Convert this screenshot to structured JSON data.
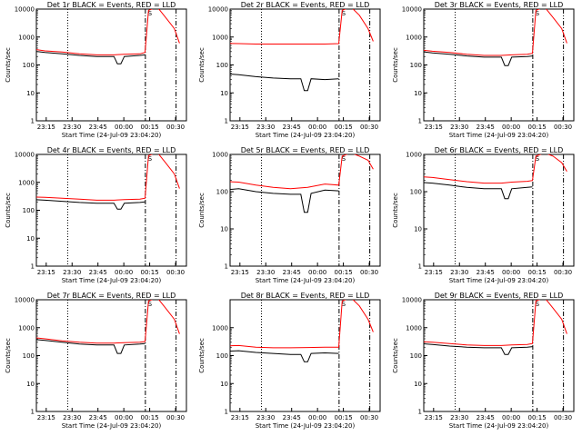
{
  "chart_data": [
    {
      "type": "line",
      "title": "Det 1r BLACK = Events, RED = LLD",
      "xlabel": "Start Time (24-Jul-09 23:04:20)",
      "ylabel": "Counts/sec",
      "yscale": "log",
      "ylim": [
        1,
        10000
      ],
      "yticks": [
        1,
        10,
        100,
        1000,
        10000
      ],
      "ytick_labels": [
        "1",
        "10",
        "100",
        "1000",
        "10000"
      ],
      "xlim_minutes": [
        23.3,
        40.5
      ],
      "xtick_labels": [
        "23:15",
        "23:30",
        "23:45",
        "00:00",
        "00:15",
        "00:30"
      ],
      "xtick_minutes": [
        10.7,
        25.7,
        40.7,
        55.7,
        70.7,
        85.7
      ],
      "grid": false,
      "markers_x_minutes": {
        "dotted": 23.2,
        "dash_dot": 68.2,
        "dash_dot_dot": 86.0
      },
      "saa_marker": "S",
      "series": [
        {
          "name": "Events",
          "color": "#000000",
          "x": [
            0,
            10,
            20,
            30,
            40,
            50,
            52,
            54,
            56,
            65,
            68
          ],
          "y": [
            330,
            280,
            250,
            220,
            200,
            200,
            110,
            110,
            200,
            220,
            230
          ]
        },
        {
          "name": "LLD",
          "color": "#ff0000",
          "x": [
            0,
            10,
            20,
            30,
            40,
            50,
            56,
            65,
            68,
            70,
            75,
            80,
            85,
            88
          ],
          "y": [
            390,
            320,
            290,
            250,
            230,
            230,
            240,
            250,
            280,
            9000,
            12000,
            5000,
            2000,
            600
          ]
        }
      ]
    },
    {
      "type": "line",
      "title": "Det 2r BLACK = Events, RED = LLD",
      "xlabel": "Start Time (24-Jul-09 23:04:20)",
      "ylabel": "Counts/sec",
      "yscale": "log",
      "ylim": [
        1,
        10000
      ],
      "yticks": [
        1,
        10,
        100,
        1000,
        10000
      ],
      "ytick_labels": [
        "1",
        "10",
        "100",
        "1000",
        "10000"
      ],
      "xtick_labels": [
        "23:15",
        "23:30",
        "23:45",
        "00:00",
        "00:15",
        "00:30"
      ],
      "xtick_minutes": [
        10.7,
        25.7,
        40.7,
        55.7,
        70.7,
        85.7
      ],
      "grid": false,
      "markers_x_minutes": {
        "dotted": 23.2,
        "dash_dot": 68.2,
        "dash_dot_dot": 86.0
      },
      "saa_marker": "S",
      "series": [
        {
          "name": "Events",
          "color": "#000000",
          "x": [
            0,
            10,
            20,
            30,
            40,
            46,
            48,
            50,
            52,
            60,
            68
          ],
          "y": [
            50,
            45,
            38,
            34,
            32,
            32,
            12,
            12,
            32,
            30,
            32
          ]
        },
        {
          "name": "LLD",
          "color": "#ff0000",
          "x": [
            0,
            10,
            20,
            30,
            40,
            50,
            60,
            68,
            70,
            75,
            80,
            85,
            88
          ],
          "y": [
            600,
            580,
            560,
            560,
            560,
            560,
            560,
            580,
            9000,
            12000,
            6000,
            2000,
            700
          ]
        }
      ]
    },
    {
      "type": "line",
      "title": "Det 3r BLACK = Events, RED = LLD",
      "xlabel": "Start Time (24-Jul-09 23:04:20)",
      "ylabel": "Counts/sec",
      "yscale": "log",
      "ylim": [
        1,
        10000
      ],
      "yticks": [
        1,
        10,
        100,
        1000,
        10000
      ],
      "ytick_labels": [
        "1",
        "10",
        "100",
        "1000",
        "10000"
      ],
      "xtick_labels": [
        "23:15",
        "23:30",
        "23:45",
        "00:00",
        "00:15",
        "00:30"
      ],
      "xtick_minutes": [
        10.7,
        25.7,
        40.7,
        55.7,
        70.7,
        85.7
      ],
      "grid": false,
      "markers_x_minutes": {
        "dotted": 23.2,
        "dash_dot": 68.2,
        "dash_dot_dot": 86.0
      },
      "saa_marker": "S",
      "series": [
        {
          "name": "Events",
          "color": "#000000",
          "x": [
            0,
            10,
            20,
            30,
            40,
            50,
            52,
            54,
            56,
            65,
            68
          ],
          "y": [
            320,
            270,
            240,
            210,
            190,
            190,
            95,
            95,
            190,
            200,
            210
          ]
        },
        {
          "name": "LLD",
          "color": "#ff0000",
          "x": [
            0,
            10,
            20,
            30,
            40,
            50,
            56,
            65,
            68,
            70,
            75,
            80,
            85,
            88
          ],
          "y": [
            360,
            310,
            280,
            240,
            220,
            220,
            230,
            240,
            260,
            9000,
            12000,
            5000,
            2000,
            600
          ]
        }
      ]
    },
    {
      "type": "line",
      "title": "Det 4r BLACK = Events, RED = LLD",
      "xlabel": "Start Time (24-Jul-09 23:04:20)",
      "ylabel": "Counts/sec",
      "yscale": "log",
      "ylim": [
        1,
        10000
      ],
      "yticks": [
        1,
        10,
        100,
        1000,
        10000
      ],
      "ytick_labels": [
        "1",
        "10",
        "100",
        "1000",
        "10000"
      ],
      "xtick_labels": [
        "23:15",
        "23:30",
        "23:45",
        "00:00",
        "00:15",
        "00:30"
      ],
      "xtick_minutes": [
        10.7,
        25.7,
        40.7,
        55.7,
        70.7,
        85.7
      ],
      "grid": false,
      "markers_x_minutes": {
        "dotted": 23.2,
        "dash_dot": 68.2,
        "dash_dot_dot": 86.0
      },
      "saa_marker": "S",
      "series": [
        {
          "name": "Events",
          "color": "#000000",
          "x": [
            0,
            10,
            20,
            30,
            40,
            50,
            52,
            54,
            56,
            65,
            68
          ],
          "y": [
            250,
            230,
            210,
            190,
            180,
            180,
            110,
            110,
            180,
            190,
            200
          ]
        },
        {
          "name": "LLD",
          "color": "#ff0000",
          "x": [
            0,
            10,
            20,
            30,
            40,
            50,
            56,
            65,
            68,
            70,
            75,
            80,
            85,
            88
          ],
          "y": [
            300,
            290,
            270,
            250,
            230,
            230,
            240,
            250,
            270,
            9000,
            12000,
            5000,
            2000,
            600
          ]
        }
      ]
    },
    {
      "type": "line",
      "title": "Det 5r BLACK = Events, RED = LLD",
      "xlabel": "Start Time (24-Jul-09 23:04:20)",
      "ylabel": "Counts/sec",
      "yscale": "log",
      "ylim": [
        1,
        1000
      ],
      "yticks": [
        1,
        10,
        100,
        1000
      ],
      "ytick_labels": [
        "1",
        "10",
        "100",
        "1000"
      ],
      "xtick_labels": [
        "23:15",
        "23:30",
        "23:45",
        "00:00",
        "00:15",
        "00:30"
      ],
      "xtick_minutes": [
        10.7,
        25.7,
        40.7,
        55.7,
        70.7,
        85.7
      ],
      "grid": false,
      "markers_x_minutes": {
        "dotted": 23.2,
        "dash_dot": 68.2,
        "dash_dot_dot": 86.0
      },
      "saa_marker": "S",
      "series": [
        {
          "name": "Events",
          "color": "#000000",
          "x": [
            0,
            10,
            20,
            30,
            40,
            46,
            48,
            50,
            52,
            60,
            68
          ],
          "y": [
            110,
            120,
            100,
            90,
            85,
            85,
            28,
            28,
            90,
            110,
            105
          ]
        },
        {
          "name": "LLD",
          "color": "#ff0000",
          "x": [
            0,
            10,
            20,
            30,
            40,
            50,
            60,
            68,
            70,
            75,
            80,
            85,
            88
          ],
          "y": [
            190,
            180,
            150,
            130,
            120,
            130,
            160,
            150,
            900,
            1100,
            900,
            700,
            400
          ]
        }
      ]
    },
    {
      "type": "line",
      "title": "Det 6r BLACK = Events, RED = LLD",
      "xlabel": "Start Time (24-Jul-09 23:04:20)",
      "ylabel": "Counts/sec",
      "yscale": "log",
      "ylim": [
        1,
        1000
      ],
      "yticks": [
        1,
        10,
        100,
        1000
      ],
      "ytick_labels": [
        "1",
        "10",
        "100",
        "1000"
      ],
      "xtick_labels": [
        "23:15",
        "23:30",
        "23:45",
        "00:00",
        "00:15",
        "00:30"
      ],
      "xtick_minutes": [
        10.7,
        25.7,
        40.7,
        55.7,
        70.7,
        85.7
      ],
      "grid": false,
      "markers_x_minutes": {
        "dotted": 23.2,
        "dash_dot": 68.2,
        "dash_dot_dot": 86.0
      },
      "saa_marker": "S",
      "series": [
        {
          "name": "Events",
          "color": "#000000",
          "x": [
            0,
            10,
            20,
            30,
            40,
            50,
            52,
            54,
            56,
            65,
            68
          ],
          "y": [
            180,
            170,
            150,
            130,
            120,
            120,
            65,
            65,
            120,
            130,
            135
          ]
        },
        {
          "name": "LLD",
          "color": "#ff0000",
          "x": [
            0,
            10,
            20,
            30,
            40,
            50,
            56,
            65,
            68,
            70,
            75,
            80,
            85,
            88
          ],
          "y": [
            260,
            240,
            210,
            185,
            170,
            170,
            180,
            190,
            200,
            900,
            1100,
            900,
            600,
            350
          ]
        }
      ]
    },
    {
      "type": "line",
      "title": "Det 7r BLACK = Events, RED = LLD",
      "xlabel": "Start Time (24-Jul-09 23:04:20)",
      "ylabel": "Counts/sec",
      "yscale": "log",
      "ylim": [
        1,
        10000
      ],
      "yticks": [
        1,
        10,
        100,
        1000,
        10000
      ],
      "ytick_labels": [
        "1",
        "10",
        "100",
        "1000",
        "10000"
      ],
      "xtick_labels": [
        "23:15",
        "23:30",
        "23:45",
        "00:00",
        "00:15",
        "00:30"
      ],
      "xtick_minutes": [
        10.7,
        25.7,
        40.7,
        55.7,
        70.7,
        85.7
      ],
      "grid": false,
      "markers_x_minutes": {
        "dotted": 23.2,
        "dash_dot": 68.2,
        "dash_dot_dot": 86.0
      },
      "saa_marker": "S",
      "series": [
        {
          "name": "Events",
          "color": "#000000",
          "x": [
            0,
            10,
            20,
            30,
            40,
            50,
            52,
            54,
            56,
            65,
            68
          ],
          "y": [
            400,
            350,
            300,
            260,
            240,
            240,
            120,
            120,
            240,
            260,
            270
          ]
        },
        {
          "name": "LLD",
          "color": "#ff0000",
          "x": [
            0,
            10,
            20,
            30,
            40,
            50,
            56,
            65,
            68,
            70,
            75,
            80,
            85,
            88
          ],
          "y": [
            460,
            400,
            340,
            300,
            280,
            280,
            290,
            300,
            320,
            9000,
            12000,
            5000,
            2000,
            600
          ]
        }
      ]
    },
    {
      "type": "line",
      "title": "Det 8r BLACK = Events, RED = LLD",
      "xlabel": "Start Time (24-Jul-09 23:04:20)",
      "ylabel": "Counts/sec",
      "yscale": "log",
      "ylim": [
        1,
        10000
      ],
      "yticks": [
        1,
        10,
        100,
        1000
      ],
      "ytick_labels": [
        "1",
        "10",
        "100",
        "1000"
      ],
      "xtick_labels": [
        "23:15",
        "23:30",
        "23:45",
        "00:00",
        "00:15",
        "00:30"
      ],
      "xtick_minutes": [
        10.7,
        25.7,
        40.7,
        55.7,
        70.7,
        85.7
      ],
      "grid": false,
      "markers_x_minutes": {
        "dotted": 23.2,
        "dash_dot": 68.2,
        "dash_dot_dot": 86.0
      },
      "saa_marker": "S",
      "series": [
        {
          "name": "Events",
          "color": "#000000",
          "x": [
            0,
            10,
            20,
            30,
            40,
            46,
            48,
            50,
            52,
            60,
            68
          ],
          "y": [
            140,
            150,
            130,
            120,
            110,
            110,
            60,
            60,
            120,
            125,
            120
          ]
        },
        {
          "name": "LLD",
          "color": "#ff0000",
          "x": [
            0,
            10,
            20,
            30,
            40,
            50,
            60,
            68,
            70,
            75,
            80,
            85,
            88
          ],
          "y": [
            220,
            230,
            200,
            190,
            190,
            195,
            200,
            200,
            9000,
            12000,
            6000,
            2000,
            700
          ]
        }
      ]
    },
    {
      "type": "line",
      "title": "Det 9r BLACK = Events, RED = LLD",
      "xlabel": "Start Time (24-Jul-09 23:04:20)",
      "ylabel": "Counts/sec",
      "yscale": "log",
      "ylim": [
        1,
        10000
      ],
      "yticks": [
        1,
        10,
        100,
        1000,
        10000
      ],
      "ytick_labels": [
        "1",
        "10",
        "100",
        "1000",
        "10000"
      ],
      "xtick_labels": [
        "23:15",
        "23:30",
        "23:45",
        "00:00",
        "00:15",
        "00:30"
      ],
      "xtick_minutes": [
        10.7,
        25.7,
        40.7,
        55.7,
        70.7,
        85.7
      ],
      "grid": false,
      "markers_x_minutes": {
        "dotted": 23.2,
        "dash_dot": 68.2,
        "dash_dot_dot": 86.0
      },
      "saa_marker": "S",
      "series": [
        {
          "name": "Events",
          "color": "#000000",
          "x": [
            0,
            10,
            20,
            30,
            40,
            50,
            52,
            54,
            56,
            65,
            68
          ],
          "y": [
            280,
            250,
            220,
            200,
            190,
            190,
            110,
            110,
            190,
            200,
            210
          ]
        },
        {
          "name": "LLD",
          "color": "#ff0000",
          "x": [
            0,
            10,
            20,
            30,
            40,
            50,
            56,
            65,
            68,
            70,
            75,
            80,
            85,
            88
          ],
          "y": [
            330,
            300,
            270,
            240,
            230,
            230,
            240,
            250,
            270,
            9000,
            12000,
            5000,
            2000,
            600
          ]
        }
      ]
    }
  ]
}
